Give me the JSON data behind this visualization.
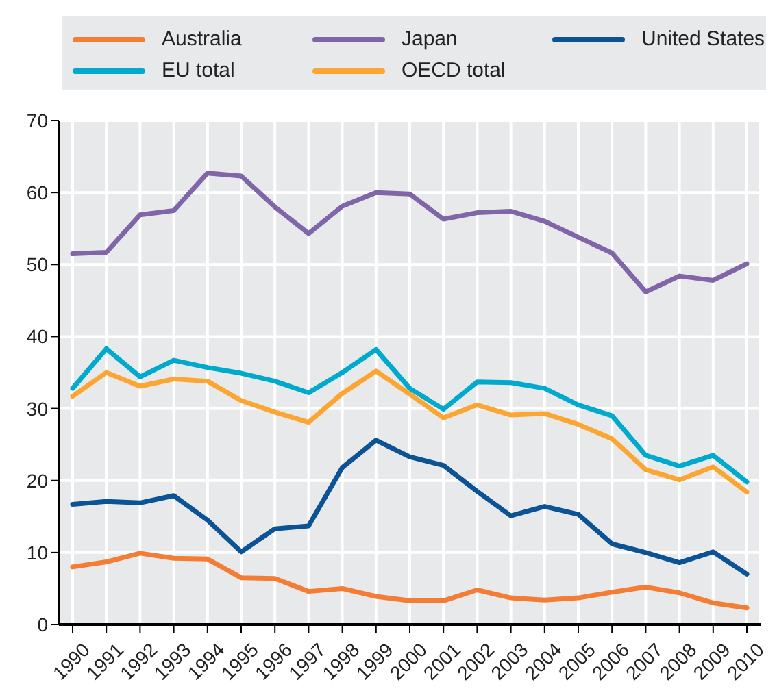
{
  "chart_data": {
    "type": "line",
    "categories": [
      "1990",
      "1991",
      "1992",
      "1993",
      "1994",
      "1995",
      "1996",
      "1997",
      "1998",
      "1999",
      "2000",
      "2001",
      "2002",
      "2003",
      "2004",
      "2005",
      "2006",
      "2007",
      "2008",
      "2009",
      "2010"
    ],
    "series": [
      {
        "name": "Australia",
        "color": "#f47d36",
        "values": [
          8.0,
          8.7,
          9.9,
          9.2,
          9.1,
          6.5,
          6.4,
          4.6,
          5.0,
          3.9,
          3.3,
          3.3,
          4.8,
          3.7,
          3.4,
          3.7,
          4.5,
          5.2,
          4.4,
          3.0,
          2.3
        ]
      },
      {
        "name": "Japan",
        "color": "#8066a8",
        "values": [
          51.5,
          51.7,
          56.9,
          57.5,
          62.7,
          62.3,
          58.0,
          54.3,
          58.1,
          60.0,
          59.8,
          56.3,
          57.2,
          57.4,
          56.0,
          53.8,
          51.6,
          46.2,
          48.4,
          47.8,
          50.1
        ]
      },
      {
        "name": "United States",
        "color": "#0b5394",
        "values": [
          16.7,
          17.1,
          16.9,
          17.9,
          14.5,
          10.1,
          13.3,
          13.7,
          21.8,
          25.6,
          23.3,
          22.1,
          18.5,
          15.1,
          16.4,
          15.3,
          11.2,
          10.0,
          8.6,
          10.1,
          7.0
        ]
      },
      {
        "name": "EU total",
        "color": "#00aacc",
        "values": [
          32.8,
          38.3,
          34.4,
          36.7,
          35.7,
          34.9,
          33.8,
          32.2,
          35.0,
          38.2,
          32.8,
          29.9,
          33.7,
          33.6,
          32.8,
          30.5,
          29.0,
          23.5,
          22.0,
          23.5,
          19.8
        ]
      },
      {
        "name": "OECD total",
        "color": "#fba633",
        "values": [
          31.7,
          35.0,
          33.1,
          34.1,
          33.8,
          31.1,
          29.5,
          28.1,
          32.1,
          35.2,
          32.0,
          28.7,
          30.5,
          29.1,
          29.3,
          27.8,
          25.8,
          21.5,
          20.1,
          21.9,
          18.4
        ]
      }
    ],
    "ylim": [
      0,
      70
    ],
    "yticks": [
      0,
      10,
      20,
      30,
      40,
      50,
      60,
      70
    ],
    "grid": true,
    "legend": "top",
    "marker": "none",
    "line_style": "solid"
  }
}
